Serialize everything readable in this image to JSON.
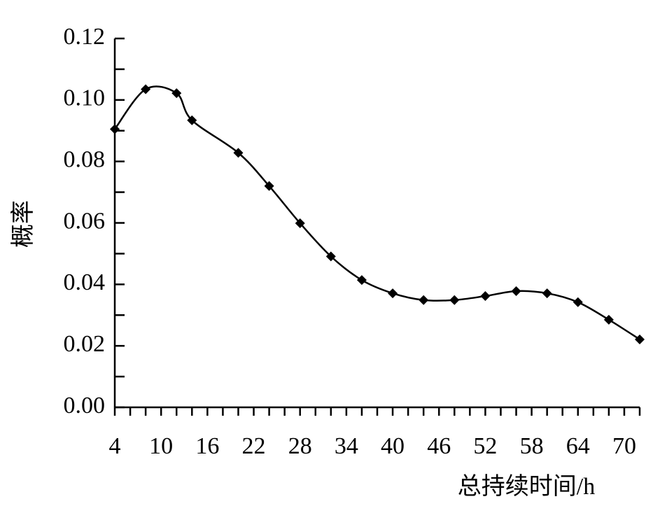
{
  "chart_data": {
    "type": "line",
    "x_label": "总持续时间/h",
    "y_label": "概率",
    "x": [
      4,
      8,
      12,
      14,
      20,
      24,
      28,
      32,
      36,
      40,
      44,
      48,
      52,
      56,
      60,
      64,
      68,
      72
    ],
    "series": [
      {
        "color": "#000000",
        "values": [
          0.0905,
          0.1035,
          0.1022,
          0.0934,
          0.0828,
          0.072,
          0.0599,
          0.0491,
          0.0414,
          0.0371,
          0.0349,
          0.0349,
          0.0362,
          0.0378,
          0.0371,
          0.0342,
          0.0285,
          0.0221
        ]
      }
    ],
    "xlim": [
      4,
      72
    ],
    "xticks": [
      4,
      10,
      16,
      22,
      28,
      34,
      40,
      46,
      52,
      58,
      64,
      70
    ],
    "ylim": [
      0,
      0.12
    ],
    "yticks": [
      {
        "value": 0,
        "label": "0.00"
      },
      0.02,
      0.04,
      0.06,
      0.08,
      {
        "value": 0.1,
        "label": "0.10"
      },
      0.12
    ],
    "marker": "diamond",
    "smooth": true,
    "grid": false
  }
}
